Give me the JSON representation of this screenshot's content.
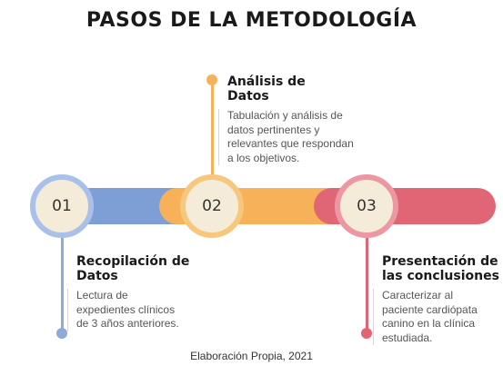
{
  "title": "PASOS DE LA METODOLOGÍA",
  "colors": {
    "blue": "#7e9fd6",
    "orange": "#f7b158",
    "red": "#e06676"
  },
  "steps": [
    {
      "number": "01",
      "title_line1": "Recopilación de",
      "title_line2": "Datos",
      "desc_lines": [
        "Lectura de",
        "expedientes clínicos",
        "de 3 años anteriores."
      ]
    },
    {
      "number": "02",
      "title_line1": "Análisis de",
      "title_line2": "Datos",
      "desc_lines": [
        "Tabulación y análisis de",
        "datos pertinentes y",
        "relevantes que respondan",
        "a los objetivos."
      ]
    },
    {
      "number": "03",
      "title_line1": "Presentación de",
      "title_line2": "las conclusiones",
      "desc_lines": [
        "Caracterizar al",
        "paciente cardiópata",
        "canino  en la clínica",
        "estudiada."
      ]
    }
  ],
  "footer": "Elaboración Propia, 2021"
}
